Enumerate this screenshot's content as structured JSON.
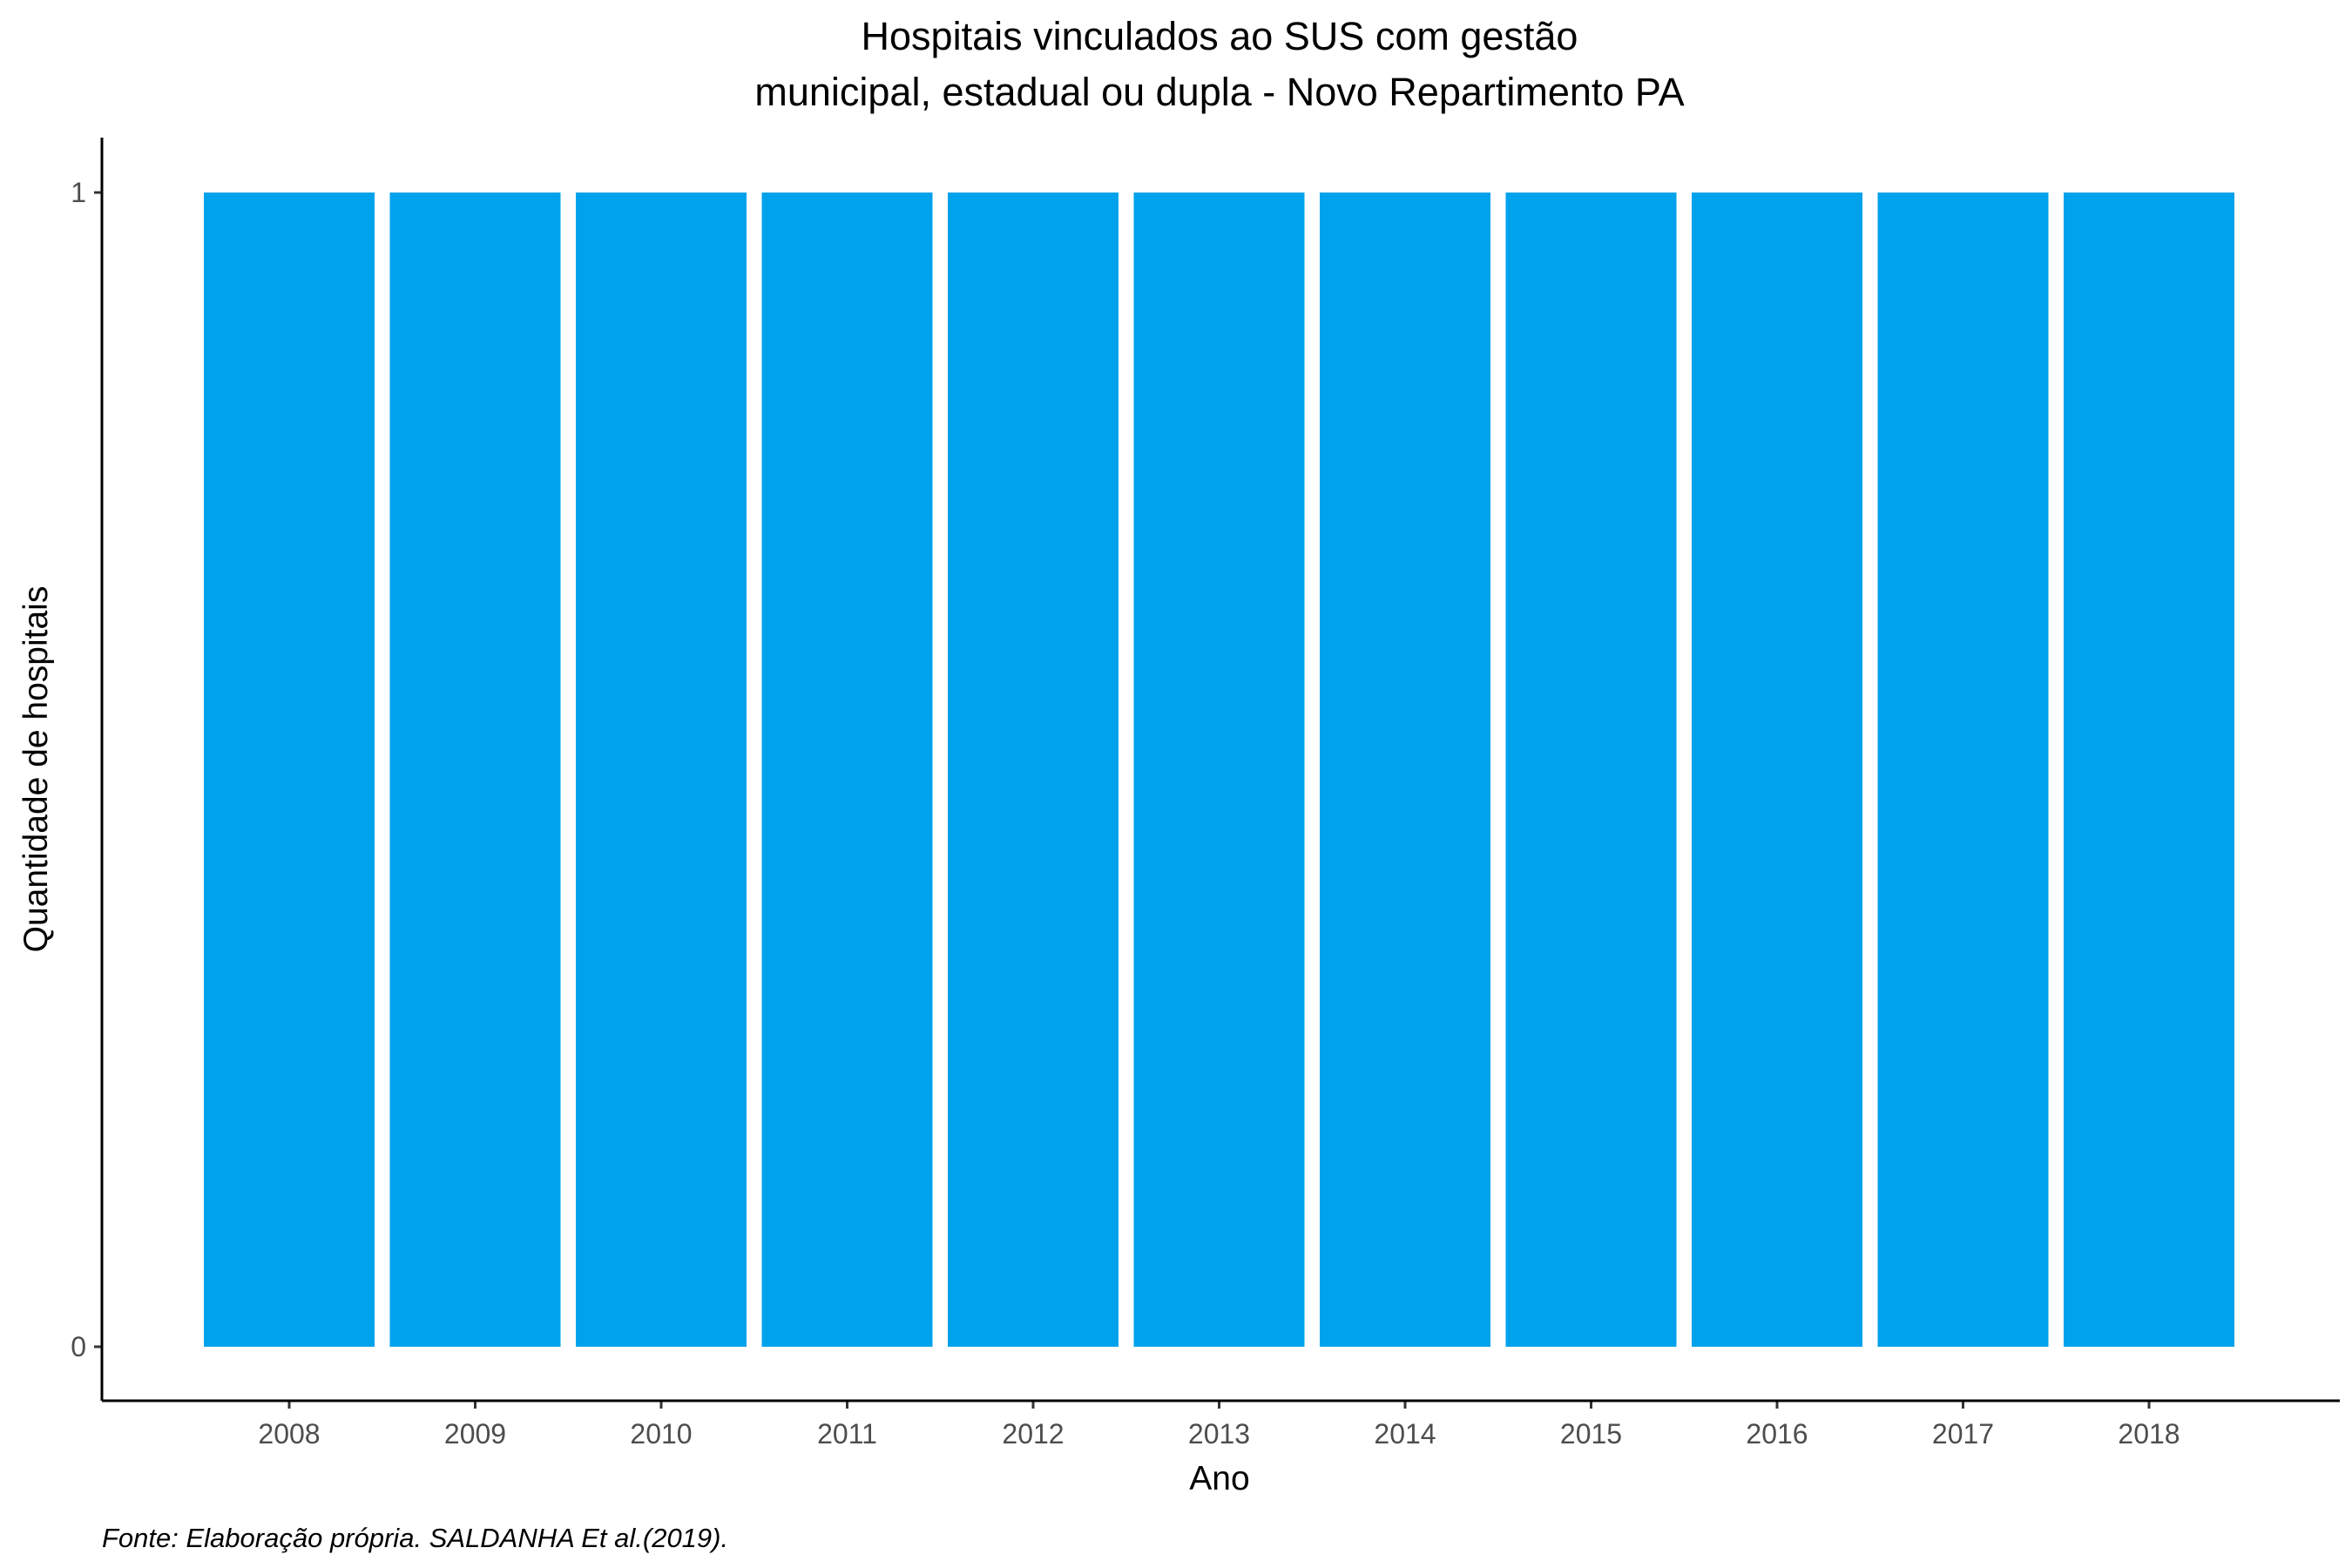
{
  "chart_data": {
    "type": "bar",
    "title_lines": [
      "Hospitais vinculados ao SUS com gestão",
      "municipal, estadual ou dupla -  Novo Repartimento PA"
    ],
    "xlabel": "Ano",
    "ylabel": "Quantidade de hospitais",
    "caption": "Fonte: Elaboração própria. SALDANHA Et al.(2019).",
    "categories": [
      "2008",
      "2009",
      "2010",
      "2011",
      "2012",
      "2013",
      "2014",
      "2015",
      "2016",
      "2017",
      "2018"
    ],
    "values": [
      1,
      1,
      1,
      1,
      1,
      1,
      1,
      1,
      1,
      1,
      1
    ],
    "yticks": [
      0,
      1
    ],
    "ylim": [
      0,
      1
    ],
    "bar_color": "#00A2EC",
    "grid": false,
    "legend": "none"
  }
}
